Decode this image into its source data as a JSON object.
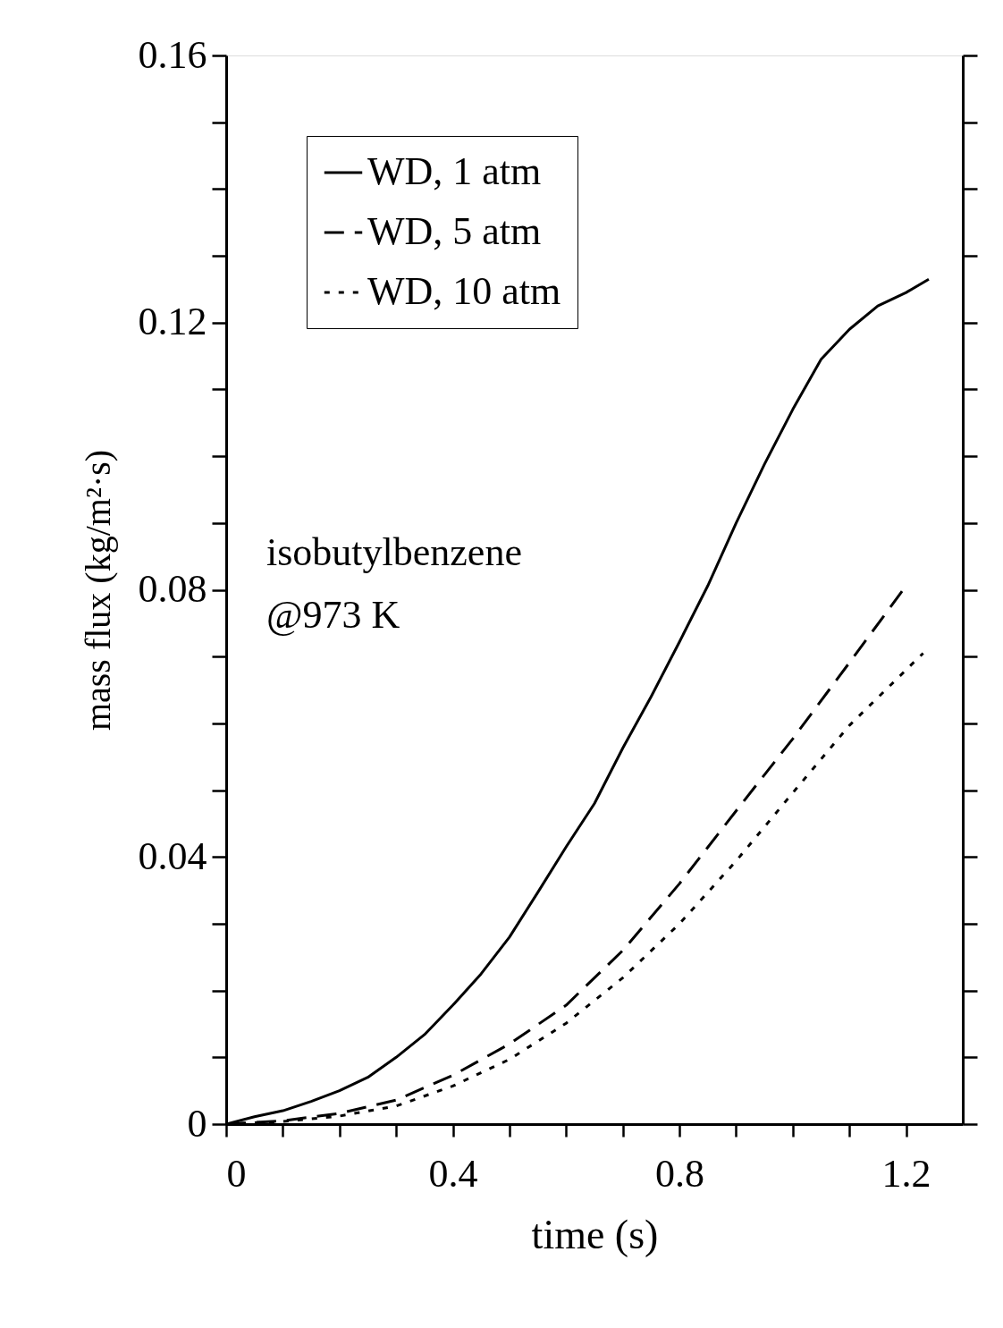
{
  "chart_data": {
    "type": "line",
    "xlabel": "time (s)",
    "ylabel": "mass flux (kg/m²·s)",
    "annotations": [
      "isobutylbenzene",
      "@973 K"
    ],
    "xlim": [
      0,
      1.3
    ],
    "ylim": [
      0,
      0.16
    ],
    "xticks": [
      0,
      {
        "value": 0.1,
        "label": null
      },
      {
        "value": 0.2,
        "label": null
      },
      {
        "value": 0.3,
        "label": null
      },
      0.4,
      {
        "value": 0.5,
        "label": null
      },
      {
        "value": 0.6,
        "label": null
      },
      {
        "value": 0.7,
        "label": null
      },
      0.8,
      {
        "value": 0.9,
        "label": null
      },
      {
        "value": 1.0,
        "label": null
      },
      {
        "value": 1.1,
        "label": null
      },
      1.2
    ],
    "yticks": [
      0,
      {
        "value": 0.01,
        "label": null
      },
      {
        "value": 0.02,
        "label": null
      },
      {
        "value": 0.03,
        "label": null
      },
      0.04,
      {
        "value": 0.05,
        "label": null
      },
      {
        "value": 0.06,
        "label": null
      },
      {
        "value": 0.07,
        "label": null
      },
      0.08,
      {
        "value": 0.09,
        "label": null
      },
      {
        "value": 0.1,
        "label": null
      },
      {
        "value": 0.11,
        "label": null
      },
      0.12,
      {
        "value": 0.13,
        "label": null
      },
      {
        "value": 0.14,
        "label": null
      },
      {
        "value": 0.15,
        "label": null
      },
      0.16
    ],
    "grid": false,
    "legend": "top left",
    "marker": "none",
    "series": [
      {
        "name": "WD, 1 atm",
        "color": "#000000",
        "line_style": "solid",
        "x": [
          0,
          0.05,
          0.1,
          0.15,
          0.2,
          0.25,
          0.3,
          0.35,
          0.4,
          0.45,
          0.5,
          0.55,
          0.6,
          0.65,
          0.7,
          0.75,
          0.8,
          0.85,
          0.9,
          0.95,
          1.0,
          1.05,
          1.1,
          1.15,
          1.2,
          1.24
        ],
        "values": [
          0,
          0.0011,
          0.002,
          0.0034,
          0.005,
          0.007,
          0.01,
          0.0134,
          0.0178,
          0.0225,
          0.028,
          0.0347,
          0.0415,
          0.048,
          0.0563,
          0.064,
          0.0722,
          0.0806,
          0.09,
          0.0988,
          0.107,
          0.1145,
          0.119,
          0.1225,
          0.1245,
          0.1265
        ]
      },
      {
        "name": "WD, 5 atm",
        "color": "#000000",
        "line_style": "dashed",
        "x": [
          0,
          0.1,
          0.2,
          0.3,
          0.4,
          0.5,
          0.6,
          0.7,
          0.8,
          0.9,
          1.0,
          1.1,
          1.2
        ],
        "values": [
          0,
          0.0005,
          0.0016,
          0.0036,
          0.0073,
          0.012,
          0.0178,
          0.026,
          0.036,
          0.0469,
          0.0577,
          0.0691,
          0.0806
        ]
      },
      {
        "name": "WD, 10 atm",
        "color": "#000000",
        "line_style": "dotted",
        "x": [
          0,
          0.1,
          0.2,
          0.3,
          0.4,
          0.5,
          0.6,
          0.7,
          0.8,
          0.9,
          1.0,
          1.1,
          1.23
        ],
        "values": [
          0,
          0.0004,
          0.0012,
          0.0027,
          0.0057,
          0.0097,
          0.0151,
          0.0219,
          0.03,
          0.0394,
          0.0496,
          0.0597,
          0.0705
        ]
      }
    ]
  }
}
